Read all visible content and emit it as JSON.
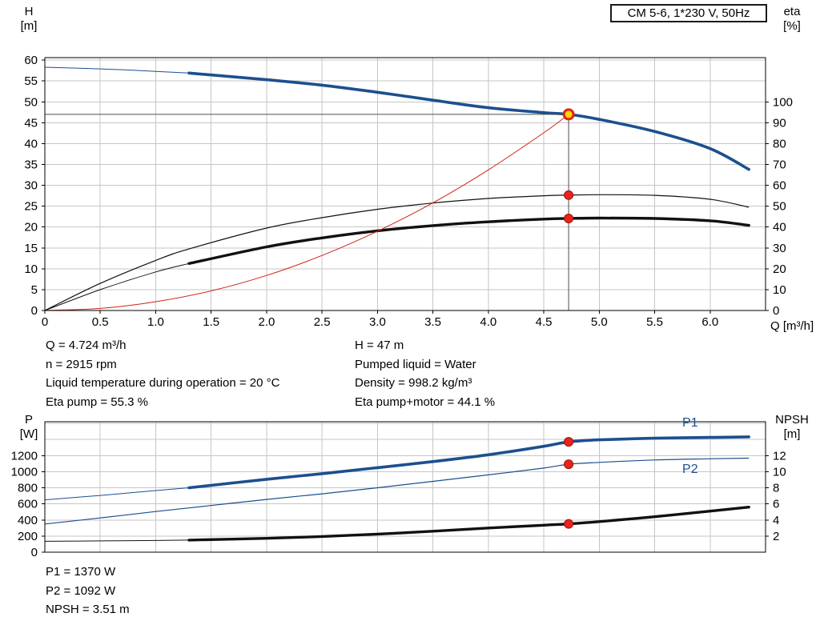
{
  "title_box": {
    "text": "CM 5-6, 1*230 V, 50Hz"
  },
  "axis_titles": {
    "h_symbol": "H",
    "h_unit": "[m]",
    "eta_symbol": "eta",
    "eta_unit": "[%]",
    "q": "Q [m³/h]",
    "p_symbol": "P",
    "p_unit": "[W]",
    "npsh_symbol": "NPSH",
    "npsh_unit": "[m]"
  },
  "info_top": {
    "left": [
      "Q = 4.724 m³/h",
      "n = 2915 rpm",
      "Liquid temperature during operation = 20 °C",
      "Eta pump = 55.3 %"
    ],
    "right": [
      "H = 47 m",
      "Pumped liquid = Water",
      "Density = 998.2 kg/m³",
      "Eta pump+motor = 44.1 %"
    ]
  },
  "info_bottom": [
    "P1 = 1370 W",
    "P2 = 1092 W",
    "NPSH = 3.51 m"
  ],
  "colors": {
    "curve_blue": "#1c4f8f",
    "curve_black": "#111111",
    "system_red": "#d02318",
    "dot_red": "#e8241a",
    "dot_edge": "#9c1008",
    "duty_yellow": "#ffd400",
    "grid": "#c6c6c6",
    "duty_line": "#4d4d4d",
    "axis": "#000000"
  },
  "chart_data": [
    {
      "id": "head-efficiency",
      "type": "line",
      "title": "CM 5-6, 1*230 V, 50Hz",
      "x_axis": {
        "label": "Q [m³/h]",
        "min": 0,
        "max": 6.5,
        "grid_step": 0.5,
        "tick_labels": [
          "0",
          "0.5",
          "1.0",
          "1.5",
          "2.0",
          "2.5",
          "3.0",
          "3.5",
          "4.0",
          "4.5",
          "5.0",
          "5.5",
          "6.0"
        ]
      },
      "y_left": {
        "label": "H [m]",
        "min": 0,
        "max": 60.6,
        "grid_step": 5,
        "tick_labels": [
          "0",
          "5",
          "10",
          "15",
          "20",
          "25",
          "30",
          "35",
          "40",
          "45",
          "50",
          "55",
          "60"
        ]
      },
      "y_right": {
        "label": "eta [%]",
        "min": 0,
        "max": 121.2,
        "tick_labels": [
          "0",
          "10",
          "20",
          "30",
          "40",
          "50",
          "60",
          "70",
          "80",
          "90",
          "100"
        ]
      },
      "series": [
        {
          "name": "head-curve",
          "axis": "left",
          "color": "#1c4f8f",
          "width": 3.6,
          "thin_width": 1,
          "split_at": 1.3,
          "points": [
            [
              0,
              58.3
            ],
            [
              0.5,
              57.9
            ],
            [
              1,
              57.3
            ],
            [
              1.3,
              56.9
            ],
            [
              2,
              55.3
            ],
            [
              2.5,
              54.0
            ],
            [
              3,
              52.3
            ],
            [
              3.5,
              50.4
            ],
            [
              4,
              48.6
            ],
            [
              4.5,
              47.4
            ],
            [
              4.724,
              47
            ],
            [
              5,
              45.8
            ],
            [
              5.5,
              42.9
            ],
            [
              6,
              38.8
            ],
            [
              6.35,
              33.8
            ]
          ]
        },
        {
          "name": "eta-pump-curve",
          "axis": "right",
          "color": "#111111",
          "width": 1.2,
          "points": [
            [
              0,
              0
            ],
            [
              0.5,
              13
            ],
            [
              1,
              24
            ],
            [
              1.3,
              29.5
            ],
            [
              2,
              39.5
            ],
            [
              2.5,
              44.5
            ],
            [
              3,
              48.5
            ],
            [
              3.5,
              51.5
            ],
            [
              4,
              53.7
            ],
            [
              4.5,
              55.0
            ],
            [
              4.724,
              55.3
            ],
            [
              5,
              55.5
            ],
            [
              5.5,
              55.2
            ],
            [
              6,
              53.3
            ],
            [
              6.35,
              49.5
            ]
          ]
        },
        {
          "name": "eta-pump-motor-curve",
          "axis": "right",
          "color": "#111111",
          "width": 3.4,
          "thin_width": 1,
          "split_at": 1.3,
          "points": [
            [
              0,
              0
            ],
            [
              0.5,
              10
            ],
            [
              1,
              18.5
            ],
            [
              1.3,
              22.5
            ],
            [
              2,
              30.5
            ],
            [
              2.5,
              34.8
            ],
            [
              3,
              38.2
            ],
            [
              3.5,
              40.7
            ],
            [
              4,
              42.5
            ],
            [
              4.5,
              43.8
            ],
            [
              4.724,
              44.1
            ],
            [
              5,
              44.3
            ],
            [
              5.5,
              44.1
            ],
            [
              6,
              43.0
            ],
            [
              6.35,
              40.8
            ]
          ]
        },
        {
          "name": "system-curve",
          "axis": "left",
          "color": "#d02318",
          "width": 1,
          "points": [
            [
              0,
              0
            ],
            [
              0.5,
              0.5
            ],
            [
              1,
              2.1
            ],
            [
              1.5,
              4.7
            ],
            [
              2,
              8.4
            ],
            [
              2.5,
              13.2
            ],
            [
              3,
              19.0
            ],
            [
              3.5,
              25.8
            ],
            [
              4,
              33.7
            ],
            [
              4.5,
              42.6
            ],
            [
              4.724,
              47
            ]
          ]
        }
      ],
      "duty_lines": {
        "q": 4.724,
        "h": 47
      },
      "markers": [
        {
          "name": "eta-pump-dot",
          "q": 4.724,
          "v": 55.3,
          "axis": "right",
          "r": 5.5,
          "fill": "#e8241a",
          "stroke": "#9c1008",
          "stroke_width": 1
        },
        {
          "name": "eta-pump-motor-dot",
          "q": 4.724,
          "v": 44.1,
          "axis": "right",
          "r": 5.5,
          "fill": "#e8241a",
          "stroke": "#9c1008",
          "stroke_width": 1
        },
        {
          "name": "duty-point",
          "q": 4.724,
          "v": 47,
          "axis": "left",
          "r": 6,
          "fill": "#ffd400",
          "stroke": "#e02418",
          "stroke_width": 3
        }
      ],
      "series_labels": []
    },
    {
      "id": "power-npsh",
      "type": "line",
      "x_axis": {
        "label": "",
        "min": 0,
        "max": 6.5,
        "grid_step": 0.5,
        "tick_labels": []
      },
      "y_left": {
        "label": "P [W]",
        "min": 0,
        "max": 1620,
        "grid_step": 200,
        "tick_labels": [
          "0",
          "200",
          "400",
          "600",
          "800",
          "1000",
          "1200"
        ]
      },
      "y_right": {
        "label": "NPSH [m]",
        "min": 0,
        "max": 16.2,
        "tick_labels": [
          "2",
          "4",
          "6",
          "8",
          "10",
          "12"
        ]
      },
      "series": [
        {
          "name": "p1-curve",
          "axis": "left",
          "color": "#1c4f8f",
          "width": 3.6,
          "thin_width": 1,
          "split_at": 1.3,
          "points": [
            [
              0,
              650
            ],
            [
              0.5,
              705
            ],
            [
              1,
              765
            ],
            [
              1.3,
              800
            ],
            [
              2,
              905
            ],
            [
              2.5,
              975
            ],
            [
              3,
              1050
            ],
            [
              3.5,
              1125
            ],
            [
              4,
              1210
            ],
            [
              4.5,
              1315
            ],
            [
              4.724,
              1370
            ],
            [
              5,
              1395
            ],
            [
              5.5,
              1415
            ],
            [
              6,
              1425
            ],
            [
              6.35,
              1432
            ]
          ]
        },
        {
          "name": "p2-curve",
          "axis": "left",
          "color": "#1c4f8f",
          "width": 1.2,
          "points": [
            [
              0,
              350
            ],
            [
              0.5,
              425
            ],
            [
              1,
              505
            ],
            [
              1.3,
              550
            ],
            [
              2,
              655
            ],
            [
              2.5,
              725
            ],
            [
              3,
              800
            ],
            [
              3.5,
              880
            ],
            [
              4,
              960
            ],
            [
              4.5,
              1045
            ],
            [
              4.724,
              1092
            ],
            [
              5,
              1115
            ],
            [
              5.5,
              1145
            ],
            [
              6,
              1160
            ],
            [
              6.35,
              1168
            ]
          ]
        },
        {
          "name": "npsh-curve",
          "axis": "right",
          "color": "#111111",
          "width": 3.4,
          "thin_width": 1,
          "split_at": 1.3,
          "points": [
            [
              0,
              1.35
            ],
            [
              0.5,
              1.4
            ],
            [
              1,
              1.45
            ],
            [
              1.3,
              1.5
            ],
            [
              2,
              1.72
            ],
            [
              2.5,
              1.95
            ],
            [
              3,
              2.25
            ],
            [
              3.5,
              2.6
            ],
            [
              4,
              3.0
            ],
            [
              4.5,
              3.35
            ],
            [
              4.724,
              3.51
            ],
            [
              5,
              3.8
            ],
            [
              5.5,
              4.4
            ],
            [
              6,
              5.1
            ],
            [
              6.35,
              5.6
            ]
          ]
        }
      ],
      "markers": [
        {
          "name": "p1-dot",
          "q": 4.724,
          "v": 1370,
          "axis": "left",
          "r": 5.5,
          "fill": "#e8241a",
          "stroke": "#9c1008",
          "stroke_width": 1
        },
        {
          "name": "p2-dot",
          "q": 4.724,
          "v": 1092,
          "axis": "left",
          "r": 5.5,
          "fill": "#e8241a",
          "stroke": "#9c1008",
          "stroke_width": 1
        },
        {
          "name": "npsh-dot",
          "q": 4.724,
          "v": 3.51,
          "axis": "right",
          "r": 5.5,
          "fill": "#e8241a",
          "stroke": "#9c1008",
          "stroke_width": 1
        }
      ],
      "series_labels": [
        {
          "text": "P1",
          "q": 5.82,
          "v": 1560,
          "axis": "left",
          "color": "#1c4f8f"
        },
        {
          "text": "P2",
          "q": 5.82,
          "v": 985,
          "axis": "left",
          "color": "#1c4f8f"
        }
      ]
    }
  ]
}
